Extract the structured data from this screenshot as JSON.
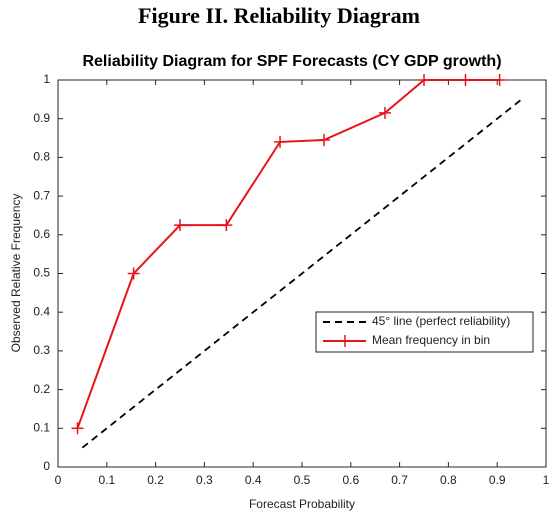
{
  "figure_title": "Figure II. Reliability Diagram",
  "chart_data": {
    "type": "line",
    "title": "Reliability Diagram for SPF Forecasts (CY GDP growth)",
    "x_label": "Forecast Probability",
    "y_label": "Observed Relative Frequency",
    "xlim": [
      0,
      1
    ],
    "ylim": [
      0,
      1
    ],
    "xticks": [
      0,
      0.1,
      0.2,
      0.3,
      0.4,
      0.5,
      0.6,
      0.7,
      0.8,
      0.9,
      1
    ],
    "yticks": [
      0,
      0.1,
      0.2,
      0.3,
      0.4,
      0.5,
      0.6,
      0.7,
      0.8,
      0.9,
      1
    ],
    "grid": false,
    "legend_position": "right",
    "series": [
      {
        "name": "45° line (perfect reliability)",
        "color": "#000000",
        "line_style": "dashed",
        "marker": "none",
        "x": [
          0.05,
          0.95
        ],
        "values": [
          0.05,
          0.95
        ]
      },
      {
        "name": "Mean frequency in bin",
        "color": "#e8141b",
        "line_style": "solid",
        "marker": "+",
        "x": [
          0.04,
          0.155,
          0.25,
          0.345,
          0.455,
          0.545,
          0.67,
          0.75,
          0.835,
          0.905
        ],
        "values": [
          0.1,
          0.5,
          0.625,
          0.625,
          0.84,
          0.845,
          0.915,
          1,
          1,
          1
        ]
      }
    ]
  }
}
